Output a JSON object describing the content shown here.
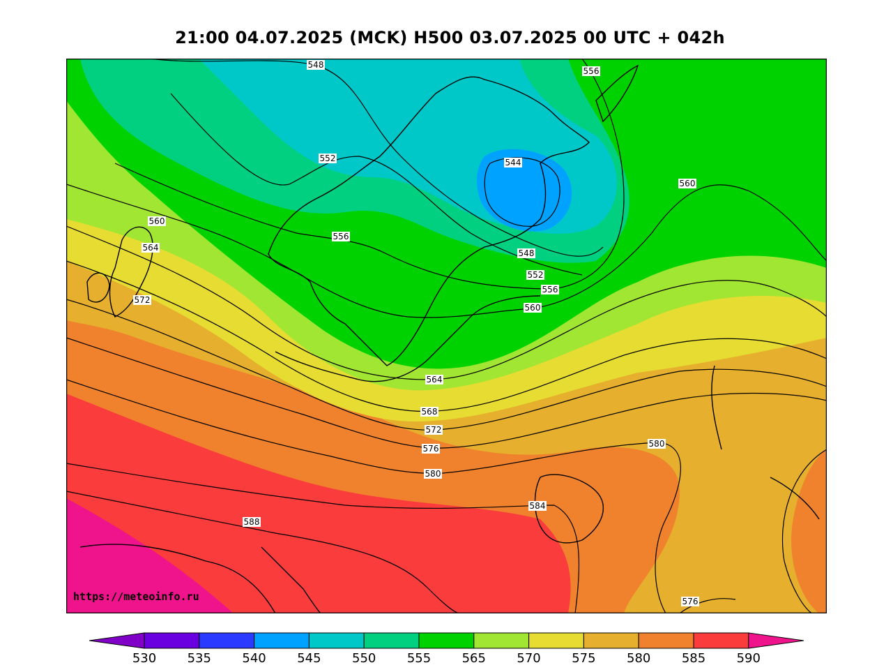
{
  "header": {
    "title": "21:00 04.07.2025 (MCK) H500  03.07.2025 00 UTC + 042h"
  },
  "watermark": "https://meteoinfo.ru",
  "colorbar": {
    "colors": [
      "#8000c8",
      "#6a00e0",
      "#2a3aff",
      "#00a2ff",
      "#00c8c8",
      "#00d080",
      "#00d200",
      "#a0e632",
      "#e6dc32",
      "#e6af2d",
      "#f0822d",
      "#fa3c3c",
      "#f0148c"
    ],
    "tick_labels": [
      "530",
      "535",
      "540",
      "545",
      "550",
      "555",
      "565",
      "570",
      "575",
      "580",
      "585",
      "590"
    ]
  },
  "map": {
    "contour_labels": [
      "548",
      "556",
      "552",
      "544",
      "560",
      "564",
      "556",
      "548",
      "552",
      "556",
      "560",
      "572",
      "564",
      "568",
      "572",
      "576",
      "580",
      "580",
      "584",
      "588",
      "576",
      "560"
    ]
  }
}
